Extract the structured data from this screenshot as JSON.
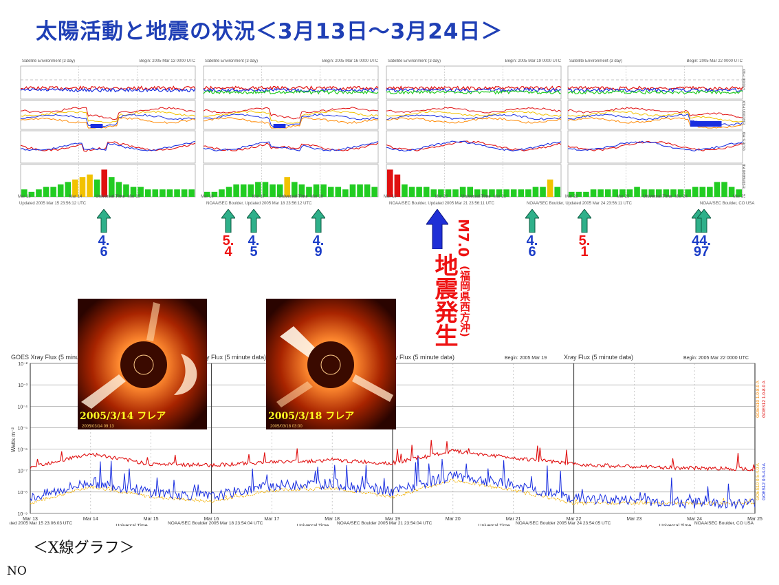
{
  "title": "太陽活動と地震の状況＜3月13日～3月24日＞",
  "top_panels": {
    "panel_header_left": "Satellite Environment (3 day)",
    "panel_headers_right": [
      "Begin:  2005 Mar 13 0000 UTC",
      "Begin:  2005 Mar 16 0000 UTC",
      "Begin:  2005 Mar 19 0000 UTC",
      "Begin:  2005 Mar 22 0000 UTC"
    ],
    "axis_title": "Universal Time",
    "side_labels": [
      "Proton Flux",
      "Electron Flux",
      "GOES Hp",
      "Estimated Kp"
    ],
    "updated_texts": [
      "Updated 2005 Mar 15 23:56:12 UTC",
      "NOAA/SEC Boulder, Updated 2005 Mar 18 23:56:12 UTC",
      "NOAA/SEC Boulder, Updated 2005 Mar 21 23:56:11 UTC",
      "NOAA/SEC Boulder, Updated 2005 Mar 24 23:56:11 UTC",
      "NOAA/SEC Boulder, CO USA"
    ],
    "kp_colors": {
      "quiet": "#22cc22",
      "active": "#f2c200",
      "storm": "#e01010"
    },
    "day_ticks": [
      "Mar 13",
      "Mar 14",
      "Mar 15",
      "Mar 16",
      "Mar 17",
      "Mar 18",
      "Mar 19",
      "Mar 20",
      "Mar 21",
      "Mar 22",
      "Mar 23",
      "Mar 24",
      "Mar 25"
    ]
  },
  "markers": [
    {
      "value": "4.\n6",
      "color": "#1a3cc8"
    },
    {
      "value": "5.\n4",
      "color": "#ee1111"
    },
    {
      "value": "4.\n5",
      "color": "#1a3cc8"
    },
    {
      "value": "4.\n9",
      "color": "#1a3cc8"
    },
    {
      "value": "4.\n6",
      "color": "#1a3cc8"
    },
    {
      "value": "5.\n1",
      "color": "#ee1111"
    },
    {
      "value": "44.\n97",
      "color": "#1a3cc8"
    }
  ],
  "earthquake": {
    "magnitude": "M7.0",
    "place": "(福岡県西方沖)",
    "label": "地震発生"
  },
  "flare_images": [
    {
      "caption": "2005/3/14  フレア",
      "stamp": "2005/03/14 09:13"
    },
    {
      "caption": "2005/3/18  フレア",
      "stamp": "2005/03/18 03:00"
    }
  ],
  "xray": {
    "headers": [
      "GOES Xray Flux (5 minute data)",
      "Xray Flux (5 minute data)",
      "Xray Flux (5 minute data)",
      "Xray Flux (5 minute data)"
    ],
    "begins": [
      "Begin:  2005 Mar 19",
      "Begin:  2005 Mar 22 0000 UTC"
    ],
    "ylabel": "Watts m⁻²",
    "yticks": [
      "10⁻²",
      "10⁻³",
      "10⁻⁴",
      "10⁻⁵",
      "10⁻⁶",
      "10⁻⁷",
      "10⁻⁸",
      "10⁻⁹"
    ],
    "xlabel": "Universal Time",
    "updated": [
      "Updated 2005 Mar 15 23:06:03 UTC",
      "NOAA/SEC Boulder 2005 Mar 18 23:54:04 UTC",
      "NOAA/SEC Boulder 2005 Mar 21 23:54:04 UTC",
      "NOAA/SEC Boulder 2005 Mar 24 23:54:05 UTC",
      "NOAA/SEC Boulder, CO USA"
    ],
    "right_legend": [
      "GOES10 1.0-8.0 A",
      "GOES12 1.0-8.0 A",
      "GOES10 0.5-4.0 A",
      "GOES12 0.5-4.0 A"
    ],
    "colors": {
      "long": "#e01010",
      "short": "#1a2fe0",
      "goes10_long": "#ff8800",
      "goes10_short": "#f2b000"
    }
  },
  "footer_caption": "＜X線グラフ＞",
  "footer_note": "NO",
  "chart_data": {
    "type": "line",
    "title": "GOES Xray Flux (5 minute data)",
    "xlabel": "Universal Time",
    "ylabel": "Watts m⁻²",
    "ylim": [
      1e-09,
      0.01
    ],
    "yscale": "log",
    "x": [
      "Mar 13",
      "Mar 14",
      "Mar 15",
      "Mar 16",
      "Mar 17",
      "Mar 18",
      "Mar 19",
      "Mar 20",
      "Mar 21",
      "Mar 22",
      "Mar 23",
      "Mar 24",
      "Mar 25"
    ],
    "series": [
      {
        "name": "GOES12 1.0-8.0 A",
        "values": [
          1.5e-07,
          6e-07,
          2e-07,
          1.8e-07,
          2.5e-07,
          3e-07,
          2.2e-07,
          8e-07,
          4e-07,
          2e-07,
          1.5e-07,
          1.3e-07,
          1.2e-07
        ]
      },
      {
        "name": "GOES12 0.5-4.0 A",
        "values": [
          5e-09,
          3e-08,
          1e-08,
          6e-09,
          2e-08,
          2.5e-08,
          1e-08,
          6e-08,
          2e-08,
          5e-09,
          4e-09,
          3e-09,
          3e-09
        ]
      }
    ],
    "grid": true
  }
}
